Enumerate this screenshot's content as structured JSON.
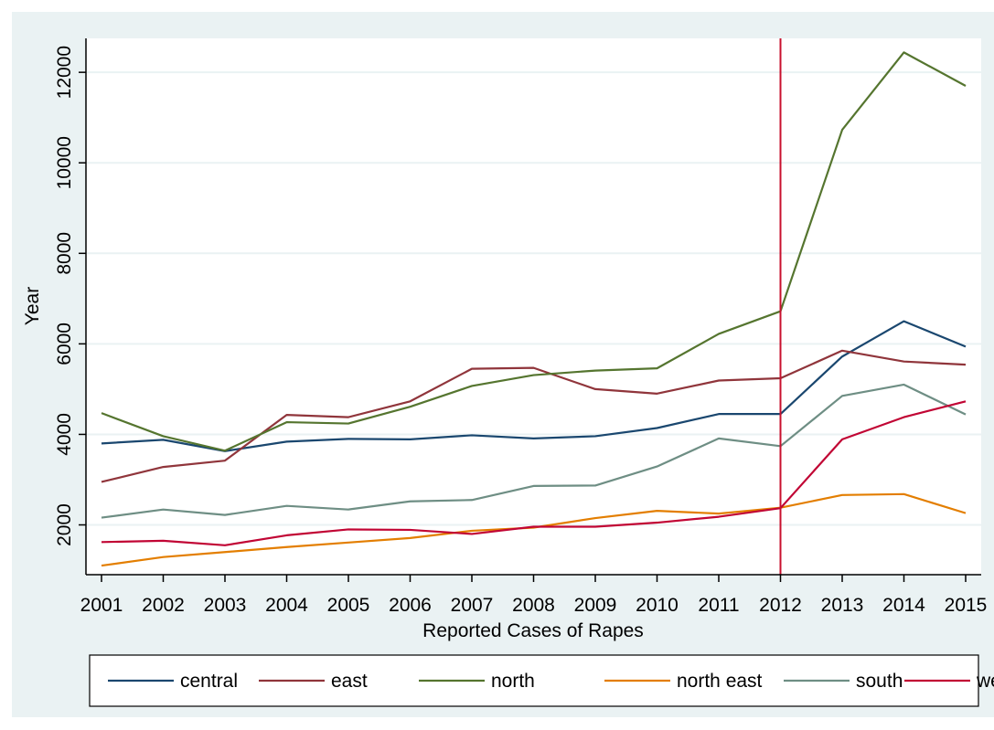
{
  "chart_data": {
    "type": "line",
    "xlabel": "Reported Cases of Rapes",
    "ylabel": "Year",
    "x": [
      2001,
      2002,
      2003,
      2004,
      2005,
      2006,
      2007,
      2008,
      2009,
      2010,
      2011,
      2012,
      2013,
      2014,
      2015
    ],
    "xlim": [
      2001,
      2015
    ],
    "ylim": [
      900,
      12750
    ],
    "yticks": [
      2000,
      4000,
      6000,
      8000,
      10000,
      12000
    ],
    "grid": "horizontal",
    "reference_line": {
      "x": 2012,
      "color": "#c8102e"
    },
    "legend_position": "bottom",
    "series": [
      {
        "name": "central",
        "color": "#1a476f",
        "values": [
          3800,
          3880,
          3630,
          3840,
          3900,
          3890,
          3980,
          3910,
          3960,
          4140,
          4450,
          4450,
          5720,
          6500,
          5940
        ]
      },
      {
        "name": "east",
        "color": "#90353b",
        "values": [
          2950,
          3280,
          3420,
          4430,
          4380,
          4730,
          5450,
          5470,
          5000,
          4900,
          5190,
          5240,
          5850,
          5610,
          5540
        ]
      },
      {
        "name": "north",
        "color": "#55752f",
        "values": [
          4470,
          3960,
          3640,
          4270,
          4240,
          4610,
          5070,
          5310,
          5410,
          5460,
          6220,
          6720,
          10730,
          12440,
          11700
        ]
      },
      {
        "name": "north east",
        "color": "#e37e00",
        "values": [
          1100,
          1290,
          1400,
          1510,
          1610,
          1710,
          1870,
          1940,
          2150,
          2310,
          2250,
          2380,
          2660,
          2680,
          2260
        ]
      },
      {
        "name": "south",
        "color": "#6e8e84",
        "values": [
          2160,
          2340,
          2220,
          2420,
          2340,
          2520,
          2550,
          2860,
          2870,
          3290,
          3910,
          3740,
          4850,
          5100,
          4440
        ]
      },
      {
        "name": "west",
        "color": "#c10534",
        "values": [
          1620,
          1650,
          1550,
          1770,
          1900,
          1890,
          1800,
          1960,
          1960,
          2050,
          2180,
          2370,
          3890,
          4380,
          4730
        ]
      }
    ]
  }
}
